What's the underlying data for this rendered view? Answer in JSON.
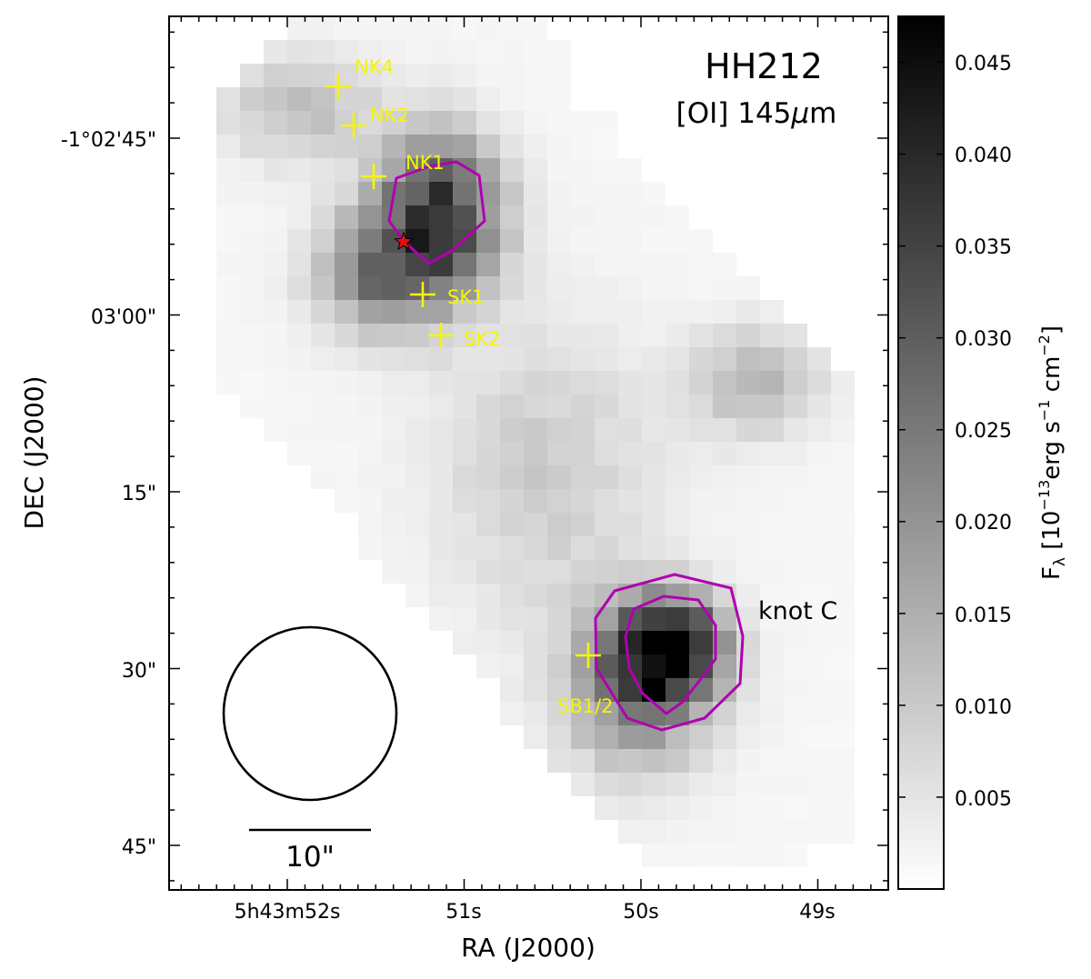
{
  "chart_data": {
    "type": "heatmap",
    "title": "HH212",
    "line_label": "[OI] 145",
    "line_unit_symbol": "μ",
    "line_unit": "m",
    "xlabel": "RA (J2000)",
    "ylabel": "DEC (J2000)",
    "x_ticks": [
      "5h43m52s",
      "51s",
      "50s",
      "49s"
    ],
    "y_ticks": [
      "-1°02'45\"",
      "03'00\"",
      "15\"",
      "30\"",
      "45\""
    ],
    "colorbar": {
      "label_prefix": "F",
      "label_subscript": "λ",
      "label_body": "[10",
      "label_exp1": "−13",
      "label_mid": "erg s",
      "label_exp2": "−1",
      "label_cm": " cm",
      "label_exp3": "−2",
      "label_end": "]",
      "ticks": [
        "0.005",
        "0.010",
        "0.015",
        "0.020",
        "0.025",
        "0.030",
        "0.035",
        "0.040",
        "0.045"
      ],
      "range": [
        0,
        0.0475
      ]
    },
    "beam_scale_label": "10\"",
    "annotations": {
      "knot": "knot C",
      "markers": [
        {
          "name": "NK4",
          "label": "NK4"
        },
        {
          "name": "NK2",
          "label": "NK2"
        },
        {
          "name": "NK1",
          "label": "NK1"
        },
        {
          "name": "SK1",
          "label": "SK1"
        },
        {
          "name": "SK2",
          "label": "SK2"
        },
        {
          "name": "SB1/2",
          "label": "SB1/2"
        }
      ]
    },
    "colors": {
      "marker": "#f5f500",
      "contour": "#b000b0",
      "source_star": "#e01010"
    }
  }
}
